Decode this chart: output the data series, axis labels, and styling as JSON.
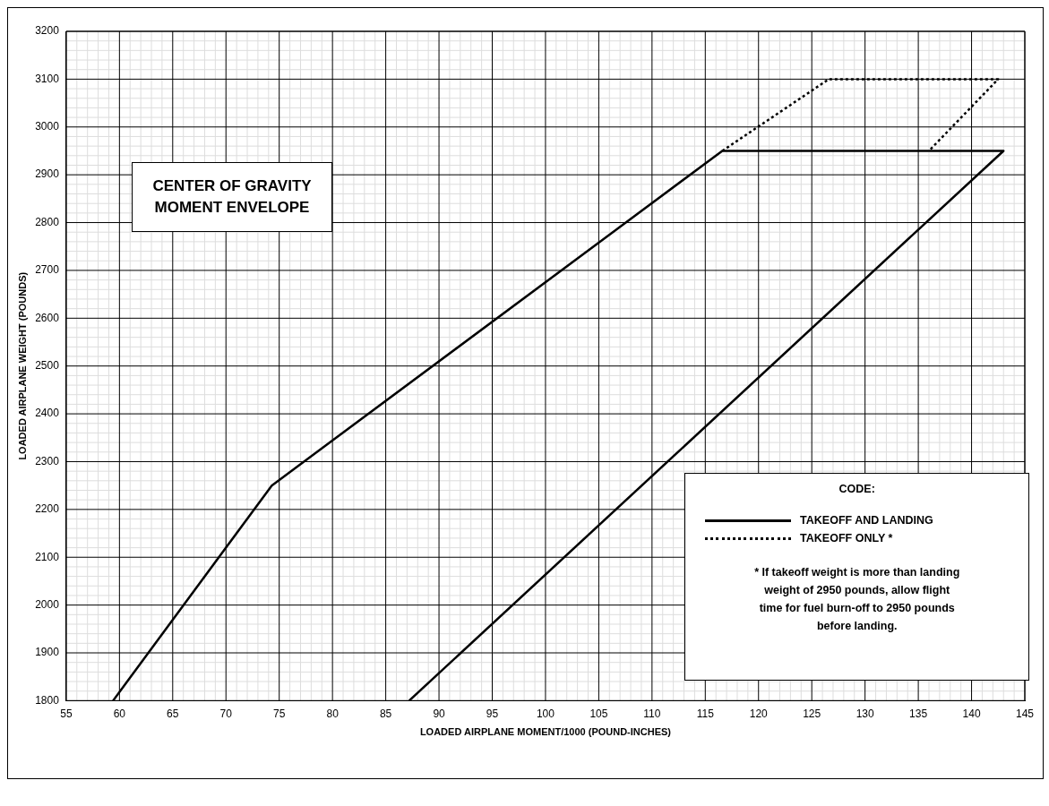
{
  "chart_data": {
    "type": "line",
    "title": "CENTER OF GRAVITY MOMENT ENVELOPE",
    "xlabel": "LOADED AIRPLANE MOMENT/1000 (POUND-INCHES)",
    "ylabel": "LOADED AIRPLANE WEIGHT (POUNDS)",
    "legend_title": "CODE:",
    "series": [
      {
        "name": "TAKEOFF AND LANDING",
        "color": "#000000",
        "line_style": "solid",
        "x": [
          59.4,
          74.3,
          116.6,
          143,
          87.2
        ],
        "values": [
          1800,
          2250,
          2950,
          2950,
          1800
        ]
      },
      {
        "name": "TAKEOFF ONLY *",
        "color": "#000000",
        "line_style": "dotted",
        "x": [
          116.6,
          126.6,
          142.5,
          136
        ],
        "values": [
          2950,
          3100,
          3100,
          2950
        ]
      }
    ],
    "xlim": [
      55,
      145
    ],
    "xticks": [
      55,
      60,
      65,
      70,
      75,
      80,
      85,
      90,
      95,
      100,
      105,
      110,
      115,
      120,
      125,
      130,
      135,
      140,
      145
    ],
    "ylim": [
      1800,
      3200
    ],
    "yticks": [
      1800,
      1900,
      2000,
      2100,
      2200,
      2300,
      2400,
      2500,
      2600,
      2700,
      2800,
      2900,
      3000,
      3100,
      3200
    ],
    "grid": true,
    "marker": "none",
    "legend": "bottom right",
    "annotations": [
      "* If takeoff weight is more than landing weight of 2950 pounds, allow flight time for fuel burn-off to 2950 pounds before landing."
    ]
  }
}
